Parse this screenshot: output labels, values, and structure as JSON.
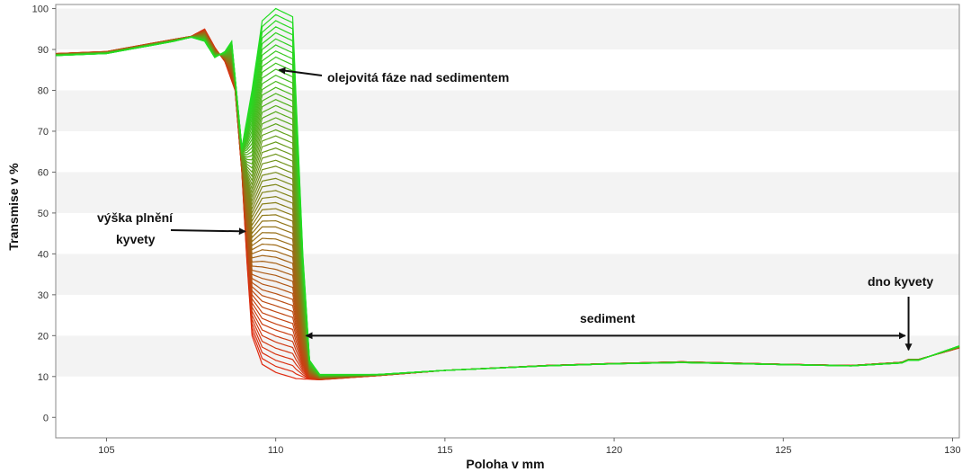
{
  "chart_data": {
    "type": "line",
    "title": "",
    "xlabel": "Poloha v mm",
    "ylabel": "Transmise v %",
    "xlim": [
      103.5,
      130.2
    ],
    "ylim": [
      -5,
      101
    ],
    "x_ticks": [
      105,
      110,
      115,
      120,
      125,
      130
    ],
    "y_ticks": [
      0,
      10,
      20,
      30,
      40,
      50,
      60,
      70,
      80,
      90,
      100
    ],
    "grid": "alternating horizontal bands",
    "legend": "none",
    "colors": {
      "first_profile": "#e02a10",
      "last_profile": "#22dd22",
      "bands": "#f3f3f3"
    },
    "series": [
      {
        "x": [
          103.5,
          105,
          106,
          107,
          107.5,
          107.9,
          108.2,
          108.5,
          108.8,
          109.0,
          109.15,
          109.3,
          109.6,
          110.0,
          110.6,
          111.3,
          113,
          115,
          118,
          120,
          122,
          125,
          127,
          128.5,
          128.7,
          129,
          130.2
        ],
        "values": [
          89,
          89.5,
          91,
          92.5,
          93.2,
          95,
          90.5,
          87,
          80,
          60,
          38,
          20,
          13,
          11,
          9.5,
          9.2,
          10.2,
          11.5,
          12.7,
          13.2,
          13.6,
          13,
          12.7,
          13.5,
          14.2,
          14.2,
          17
        ]
      },
      {
        "x": [
          103.5,
          105,
          106,
          107,
          107.5,
          107.9,
          108.2,
          108.5,
          108.7,
          109.0,
          109.3,
          109.6,
          110.0,
          110.5,
          110.8,
          111.0,
          111.3,
          113,
          115,
          118,
          120,
          122,
          125,
          127,
          128.5,
          128.7,
          129,
          130.2
        ],
        "values": [
          88.5,
          89,
          90.5,
          92,
          93,
          92,
          88,
          89.5,
          92,
          66,
          80,
          97,
          100,
          98,
          40,
          14,
          10.5,
          10.5,
          11.5,
          12.6,
          13.1,
          13.4,
          12.9,
          12.6,
          13.3,
          14,
          14,
          17.5
        ]
      }
    ],
    "annotations": [
      {
        "text": "olejovitá fáze nad sedimentem",
        "arrow_to": [
          110.1,
          85
        ]
      },
      {
        "text": "výška plnění",
        "line2": "kyvety",
        "arrow_to": [
          109.1,
          45.5
        ]
      },
      {
        "text": "sediment",
        "arrow_from": [
          110.9,
          20
        ],
        "arrow_to": [
          128.6,
          20
        ]
      },
      {
        "text": "dno kyvety",
        "arrow_to": [
          128.7,
          16.5
        ]
      }
    ]
  }
}
